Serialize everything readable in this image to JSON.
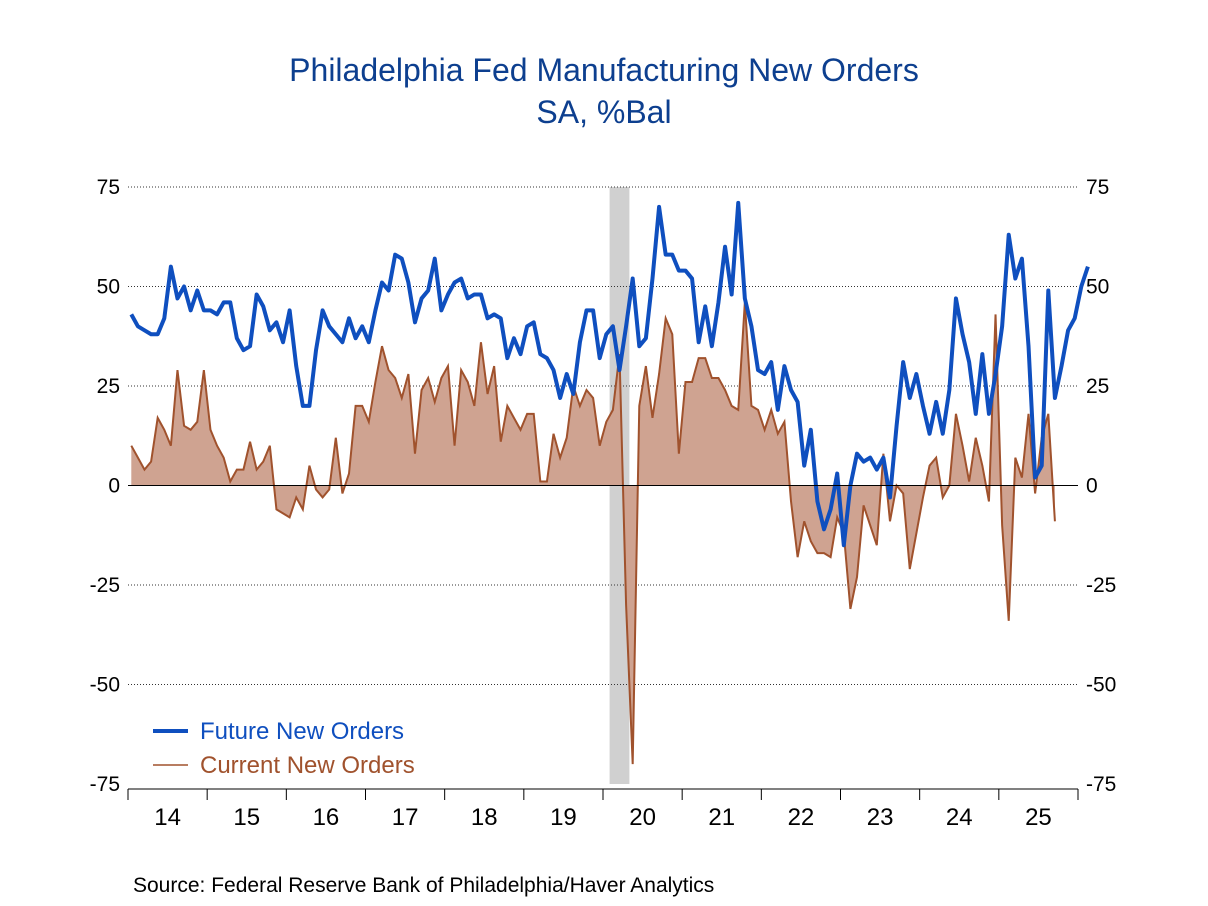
{
  "chart_data": {
    "type": "line",
    "title": "Philadelphia Fed Manufacturing New Orders",
    "subtitle": "SA, %Bal",
    "source": "Source:  Federal Reserve Bank of Philadelphia/Haver Analytics",
    "start": "2014-01",
    "frequency": "monthly",
    "ylim": [
      -75,
      75
    ],
    "yticks": [
      75,
      50,
      25,
      0,
      -25,
      -50,
      -75
    ],
    "ytick_labels": [
      "75",
      "50",
      "25",
      "0",
      "-25",
      "-50",
      "-75"
    ],
    "xtick_labels": [
      "14",
      "15",
      "16",
      "17",
      "18",
      "19",
      "20",
      "21",
      "22",
      "23",
      "24",
      "25"
    ],
    "recession": {
      "start": "2020-02",
      "end": "2020-04"
    },
    "legend_position": "bottom-left",
    "grid": true,
    "series": [
      {
        "name": "Future New Orders",
        "color": "#0f4fbf",
        "style": "thick-line",
        "values": [
          43,
          40,
          39,
          38,
          38,
          42,
          55,
          47,
          50,
          44,
          49,
          44,
          44,
          43,
          46,
          46,
          37,
          34,
          35,
          48,
          45,
          39,
          41,
          36,
          44,
          30,
          20,
          20,
          34,
          44,
          40,
          38,
          36,
          42,
          37,
          40,
          36,
          44,
          51,
          49,
          58,
          57,
          51,
          41,
          47,
          49,
          57,
          44,
          48,
          51,
          52,
          47,
          48,
          48,
          42,
          43,
          42,
          32,
          37,
          33,
          40,
          41,
          33,
          32,
          29,
          22,
          28,
          23,
          36,
          44,
          44,
          32,
          38,
          40,
          29,
          40,
          52,
          35,
          37,
          52,
          70,
          58,
          58,
          54,
          54,
          52,
          36,
          45,
          35,
          46,
          60,
          48,
          71,
          47,
          40,
          29,
          28,
          31,
          19,
          30,
          24,
          21,
          5,
          14,
          -4,
          -11,
          -6,
          3,
          -15,
          0,
          8,
          6,
          7,
          4,
          7,
          -3,
          15,
          31,
          22,
          28,
          20,
          13,
          21,
          13,
          24,
          47,
          38,
          31,
          18,
          33,
          18,
          28,
          40,
          63,
          52,
          57,
          35,
          2,
          5,
          49,
          22,
          30,
          39,
          42,
          50,
          55
        ]
      },
      {
        "name": "Current New Orders",
        "color": "#a0522d",
        "fill": "#cfa391",
        "style": "thin-line-area",
        "values": [
          10,
          7,
          4,
          6,
          17,
          14,
          10,
          29,
          15,
          14,
          16,
          29,
          14,
          10,
          7,
          1,
          4,
          4,
          11,
          4,
          6,
          10,
          -6,
          -7,
          -8,
          -3,
          -6,
          5,
          -1,
          -3,
          -1,
          12,
          -2,
          3,
          20,
          20,
          16,
          26,
          35,
          29,
          27,
          22,
          28,
          8,
          24,
          27,
          21,
          27,
          30,
          10,
          29,
          26,
          20,
          36,
          23,
          30,
          11,
          20,
          17,
          14,
          18,
          18,
          1,
          1,
          13,
          7,
          12,
          25,
          20,
          24,
          22,
          10,
          16,
          19,
          33,
          -30,
          -70,
          20,
          30,
          17,
          28,
          42,
          38,
          8,
          26,
          26,
          32,
          32,
          27,
          27,
          24,
          20,
          19,
          46,
          20,
          19,
          14,
          19,
          13,
          16,
          -4,
          -18,
          -9,
          -14,
          -17,
          -17,
          -18,
          -8,
          -12,
          -31,
          -23,
          -5,
          -10,
          -15,
          8,
          -9,
          0,
          -2,
          -21,
          -12,
          -3,
          5,
          7,
          -3,
          0,
          18,
          10,
          1,
          12,
          5,
          -4,
          43,
          -10,
          -34,
          7,
          2,
          18,
          -2,
          12,
          18,
          -9
        ]
      }
    ]
  }
}
